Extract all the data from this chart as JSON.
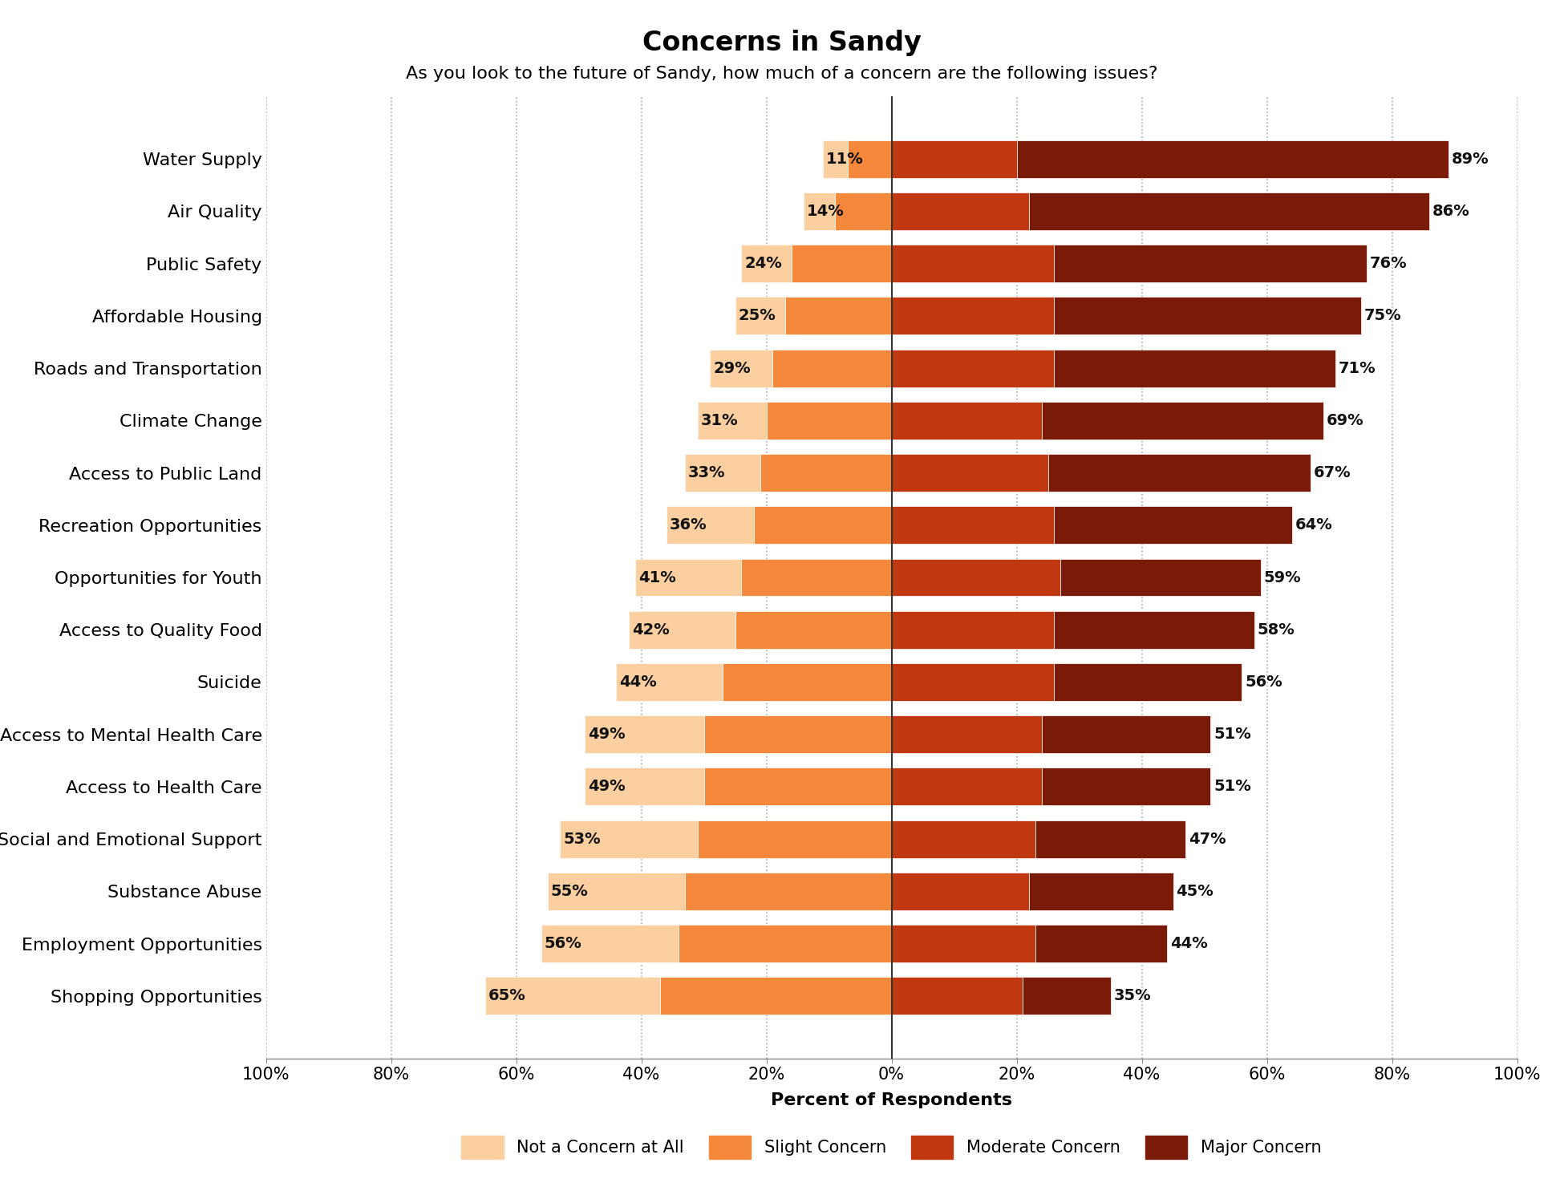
{
  "title": "Concerns in Sandy",
  "subtitle": "As you look to the future of Sandy, how much of a concern are the following issues?",
  "xlabel": "Percent of Respondents",
  "categories": [
    "Water Supply",
    "Air Quality",
    "Public Safety",
    "Affordable Housing",
    "Roads and Transportation",
    "Climate Change",
    "Access to Public Land",
    "Recreation Opportunities",
    "Opportunities for Youth",
    "Access to Quality Food",
    "Suicide",
    "Access to Mental Health Care",
    "Access to Health Care",
    "Social and Emotional Support",
    "Substance Abuse",
    "Employment Opportunities",
    "Shopping Opportunities"
  ],
  "not_concern": [
    4,
    5,
    8,
    8,
    10,
    11,
    12,
    14,
    17,
    17,
    17,
    19,
    19,
    22,
    22,
    22,
    28
  ],
  "slight_concern": [
    7,
    9,
    16,
    17,
    19,
    20,
    21,
    22,
    24,
    25,
    27,
    30,
    30,
    31,
    33,
    34,
    37
  ],
  "moderate_concern": [
    20,
    22,
    26,
    26,
    26,
    24,
    25,
    26,
    27,
    26,
    26,
    24,
    24,
    23,
    22,
    23,
    21
  ],
  "major_concern": [
    69,
    64,
    50,
    49,
    45,
    45,
    42,
    38,
    32,
    32,
    30,
    27,
    27,
    24,
    23,
    21,
    14
  ],
  "left_pct": [
    11,
    14,
    24,
    25,
    29,
    31,
    33,
    36,
    41,
    42,
    44,
    49,
    49,
    53,
    55,
    56,
    65
  ],
  "right_pct": [
    89,
    86,
    76,
    75,
    71,
    69,
    67,
    64,
    59,
    58,
    56,
    51,
    51,
    47,
    45,
    44,
    35
  ],
  "color_not_concern": "#FBCFA0",
  "color_slight": "#F5883A",
  "color_moderate": "#C13810",
  "color_major": "#7A1A08",
  "background_color": "#FFFFFF",
  "grid_color": "#AAAAAA",
  "bar_height": 0.72,
  "xlim": [
    -100,
    100
  ],
  "xticks": [
    -100,
    -80,
    -60,
    -40,
    -20,
    0,
    20,
    40,
    60,
    80,
    100
  ],
  "xticklabels": [
    "100%",
    "80%",
    "60%",
    "40%",
    "20%",
    "0%",
    "20%",
    "40%",
    "60%",
    "80%",
    "100%"
  ],
  "title_fontsize": 24,
  "subtitle_fontsize": 16,
  "ylabel_fontsize": 16,
  "xlabel_fontsize": 16,
  "tick_fontsize": 15,
  "legend_fontsize": 15,
  "annot_fontsize": 14
}
